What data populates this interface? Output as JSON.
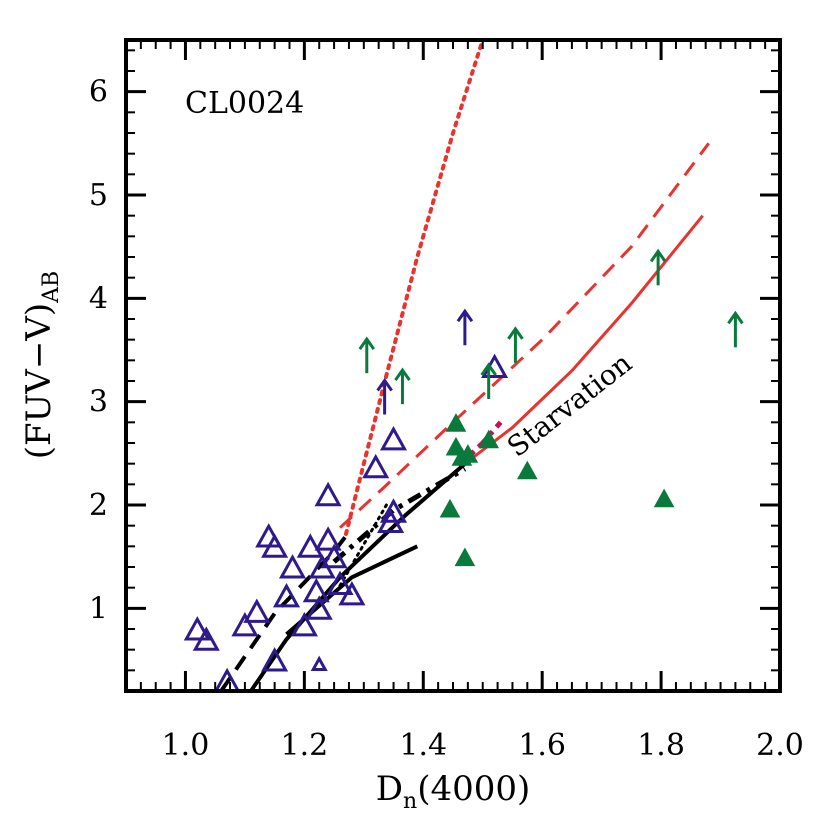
{
  "chart_data": {
    "type": "scatter",
    "label": "CL0024",
    "xlabel_main": "D",
    "xlabel_sub": "n",
    "xlabel_rest": "(4000)",
    "ylabel_main": "(FUV−V)",
    "ylabel_sub": "AB",
    "xlim": [
      0.9,
      2.0
    ],
    "ylim": [
      0.2,
      6.5
    ],
    "xticks": [
      1.0,
      1.2,
      1.4,
      1.6,
      1.8,
      2.0
    ],
    "xtick_labels": [
      "1.0",
      "1.2",
      "1.4",
      "1.6",
      "1.8",
      "2.0"
    ],
    "yticks": [
      1,
      2,
      3,
      4,
      5,
      6
    ],
    "ytick_labels": [
      "1",
      "2",
      "3",
      "4",
      "5",
      "6"
    ],
    "annotation": "Starvation",
    "colors": {
      "blue": "#2e1a8c",
      "green": "#0a7a3c",
      "red": "#e8332e",
      "magenta": "#c8105a",
      "black": "#000000"
    },
    "series": [
      {
        "marker": "open-triangle",
        "color": "blue",
        "points": [
          [
            1.02,
            0.78
          ],
          [
            1.035,
            0.68
          ],
          [
            1.07,
            0.28
          ],
          [
            1.1,
            0.82
          ],
          [
            1.12,
            0.95
          ],
          [
            1.14,
            1.68
          ],
          [
            1.15,
            1.58
          ],
          [
            1.15,
            0.48
          ],
          [
            1.17,
            1.1
          ],
          [
            1.18,
            1.38
          ],
          [
            1.2,
            0.82
          ],
          [
            1.21,
            1.58
          ],
          [
            1.22,
            1.15
          ],
          [
            1.225,
            0.98
          ],
          [
            1.23,
            1.38
          ],
          [
            1.24,
            2.08
          ],
          [
            1.24,
            1.65
          ],
          [
            1.25,
            1.48
          ],
          [
            1.26,
            1.22
          ],
          [
            1.28,
            1.12
          ],
          [
            1.32,
            2.35
          ],
          [
            1.35,
            2.62
          ],
          [
            1.35,
            1.92
          ],
          [
            1.345,
            1.82
          ],
          [
            1.52,
            3.32
          ]
        ]
      },
      {
        "marker": "small-open-triangle",
        "color": "blue",
        "points": [
          [
            1.225,
            0.45
          ]
        ]
      },
      {
        "marker": "filled-triangle",
        "color": "green",
        "points": [
          [
            1.455,
            2.78
          ],
          [
            1.455,
            2.55
          ],
          [
            1.465,
            2.45
          ],
          [
            1.475,
            2.48
          ],
          [
            1.445,
            1.95
          ],
          [
            1.47,
            1.48
          ],
          [
            1.51,
            2.62
          ],
          [
            1.575,
            2.32
          ],
          [
            1.805,
            2.05
          ]
        ]
      },
      {
        "marker": "up-arrow",
        "color": "blue",
        "points": [
          [
            1.335,
            3.05
          ],
          [
            1.47,
            3.72
          ]
        ]
      },
      {
        "marker": "up-arrow",
        "color": "green",
        "points": [
          [
            1.305,
            3.45
          ],
          [
            1.365,
            3.15
          ],
          [
            1.51,
            3.2
          ],
          [
            1.555,
            3.55
          ],
          [
            1.795,
            4.3
          ],
          [
            1.925,
            3.7
          ]
        ]
      }
    ],
    "curves": [
      {
        "style": "red-solid",
        "points": [
          [
            1.47,
            2.4
          ],
          [
            1.55,
            2.75
          ],
          [
            1.65,
            3.3
          ],
          [
            1.75,
            3.95
          ],
          [
            1.87,
            4.8
          ]
        ]
      },
      {
        "style": "red-dashed",
        "points": [
          [
            1.26,
            1.78
          ],
          [
            1.33,
            2.15
          ],
          [
            1.45,
            2.8
          ],
          [
            1.6,
            3.6
          ],
          [
            1.75,
            4.5
          ],
          [
            1.88,
            5.5
          ]
        ]
      },
      {
        "style": "red-dotted",
        "points": [
          [
            1.27,
            1.72
          ],
          [
            1.3,
            2.4
          ],
          [
            1.34,
            3.3
          ],
          [
            1.39,
            4.4
          ],
          [
            1.45,
            5.6
          ],
          [
            1.5,
            6.5
          ]
        ]
      },
      {
        "style": "magenta-dash-dot",
        "points": [
          [
            1.46,
            2.38
          ],
          [
            1.5,
            2.6
          ],
          [
            1.53,
            2.8
          ]
        ]
      },
      {
        "style": "black-solid",
        "points": [
          [
            1.11,
            0.2
          ],
          [
            1.17,
            0.7
          ],
          [
            1.26,
            1.3
          ],
          [
            1.37,
            1.9
          ],
          [
            1.47,
            2.4
          ]
        ]
      },
      {
        "style": "black-solid",
        "points": [
          [
            1.17,
            0.75
          ],
          [
            1.28,
            1.3
          ],
          [
            1.39,
            1.6
          ]
        ]
      },
      {
        "style": "black-dashed",
        "points": [
          [
            1.06,
            0.2
          ],
          [
            1.15,
            0.95
          ],
          [
            1.25,
            1.55
          ],
          [
            1.27,
            1.7
          ]
        ]
      },
      {
        "style": "black-dash-dot",
        "points": [
          [
            1.25,
            1.45
          ],
          [
            1.35,
            1.95
          ],
          [
            1.47,
            2.35
          ]
        ]
      },
      {
        "style": "black-dotted",
        "points": [
          [
            1.26,
            1.22
          ],
          [
            1.3,
            1.62
          ],
          [
            1.34,
            2.02
          ]
        ]
      }
    ]
  }
}
